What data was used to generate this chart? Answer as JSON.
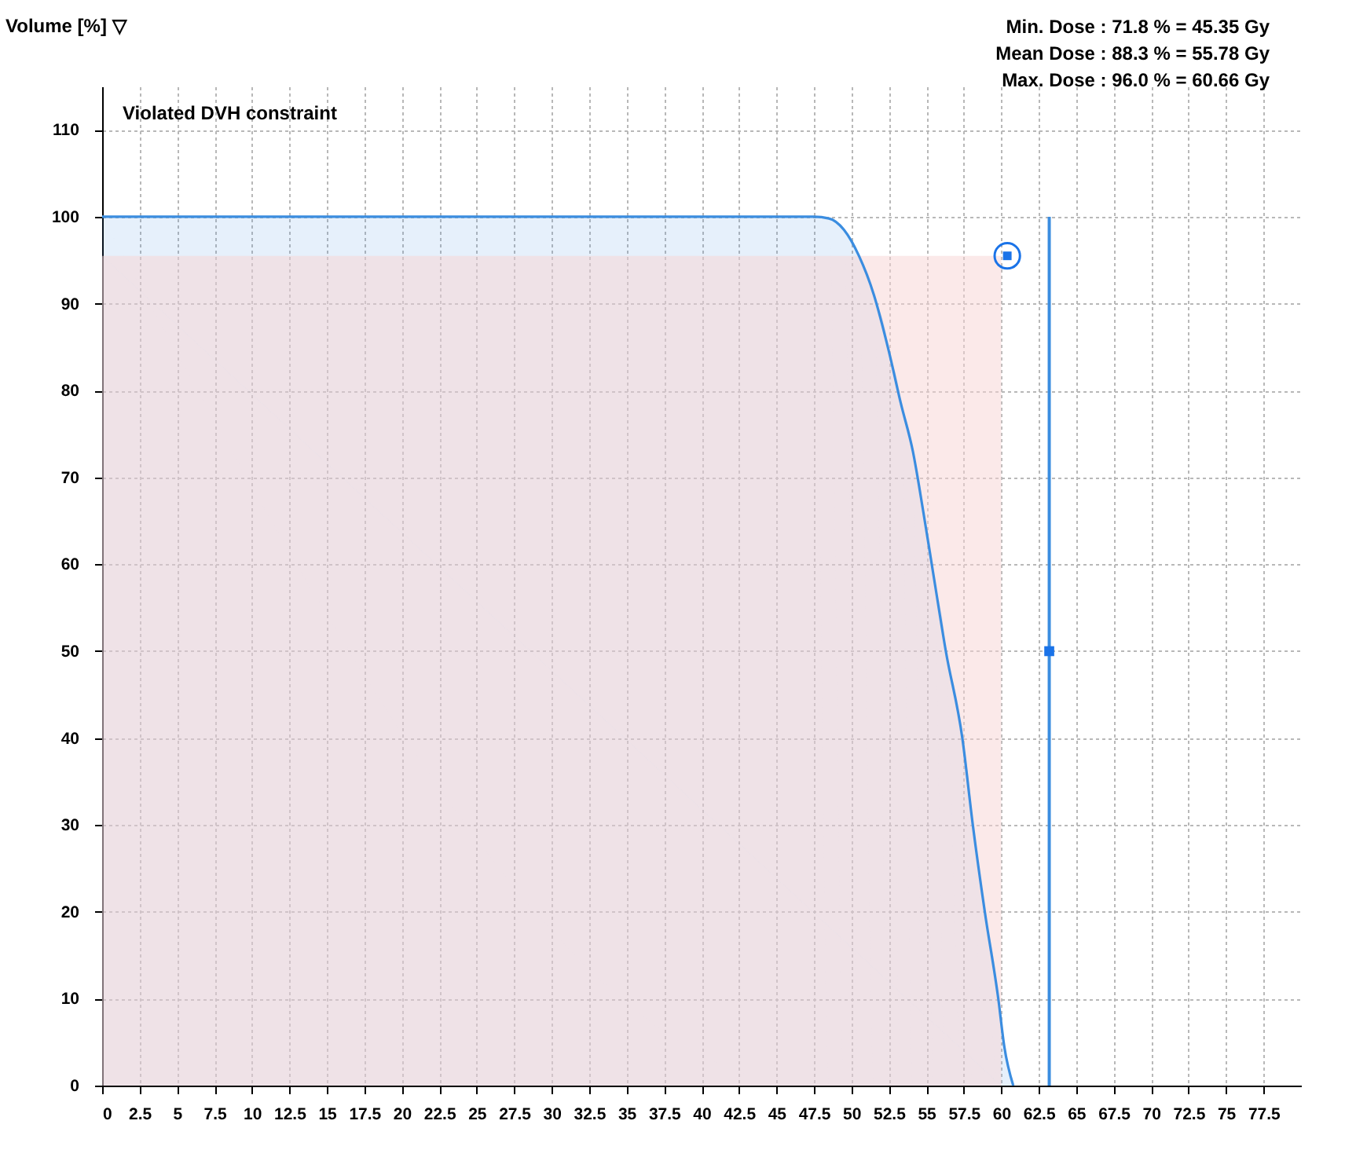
{
  "chart_data": {
    "type": "area",
    "ylabel": "Volume [%] ▽",
    "annotations": [
      "Min. Dose : 71.8 % = 45.35 Gy",
      "Mean Dose : 88.3 % = 55.78 Gy",
      "Max. Dose : 96.0 % = 60.66 Gy",
      "Violated DVH constraint"
    ],
    "series": [
      {
        "color": "#3b8de0",
        "x": [
          0,
          47.5,
          48.5,
          49.5,
          50.5,
          51.5,
          52.5,
          53.3,
          54.1,
          54.8,
          55.5,
          56.3,
          57.4,
          58.1,
          58.9,
          59.8,
          60.2,
          60.8
        ],
        "values": [
          100,
          100,
          99.8,
          98.5,
          95.5,
          91,
          84.5,
          78.5,
          73,
          66,
          58.5,
          50,
          40,
          30,
          20,
          10,
          4.5,
          0
        ]
      },
      {
        "type": "area",
        "color": "#f8d3d3",
        "x": [
          0,
          60
        ],
        "values": [
          95.5,
          95.5
        ]
      },
      {
        "type": "line",
        "color": "#3b8de0",
        "x": [
          63.2,
          63.2
        ],
        "values": [
          0,
          100
        ]
      },
      {
        "type": "scatter",
        "marker": "square",
        "color": "#1a73e8",
        "x": [
          63.2
        ],
        "values": [
          50
        ]
      },
      {
        "type": "scatter",
        "marker": "circle",
        "color": "#1a73e8",
        "x": [
          60.4
        ],
        "values": [
          95.5
        ]
      }
    ],
    "xlim": [
      0,
      80
    ],
    "xticks": [
      0,
      2.5,
      5,
      7.5,
      10,
      12.5,
      15,
      17.5,
      20,
      22.5,
      25,
      27.5,
      30,
      32.5,
      35,
      37.5,
      40,
      42.5,
      45,
      47.5,
      50,
      52.5,
      55,
      57.5,
      60,
      62.5,
      65,
      67.5,
      70,
      72.5,
      75,
      77.5
    ],
    "ylim": [
      0,
      115
    ],
    "yticks": [
      0,
      10,
      20,
      30,
      40,
      50,
      60,
      70,
      80,
      90,
      100,
      110
    ],
    "grid": true
  }
}
